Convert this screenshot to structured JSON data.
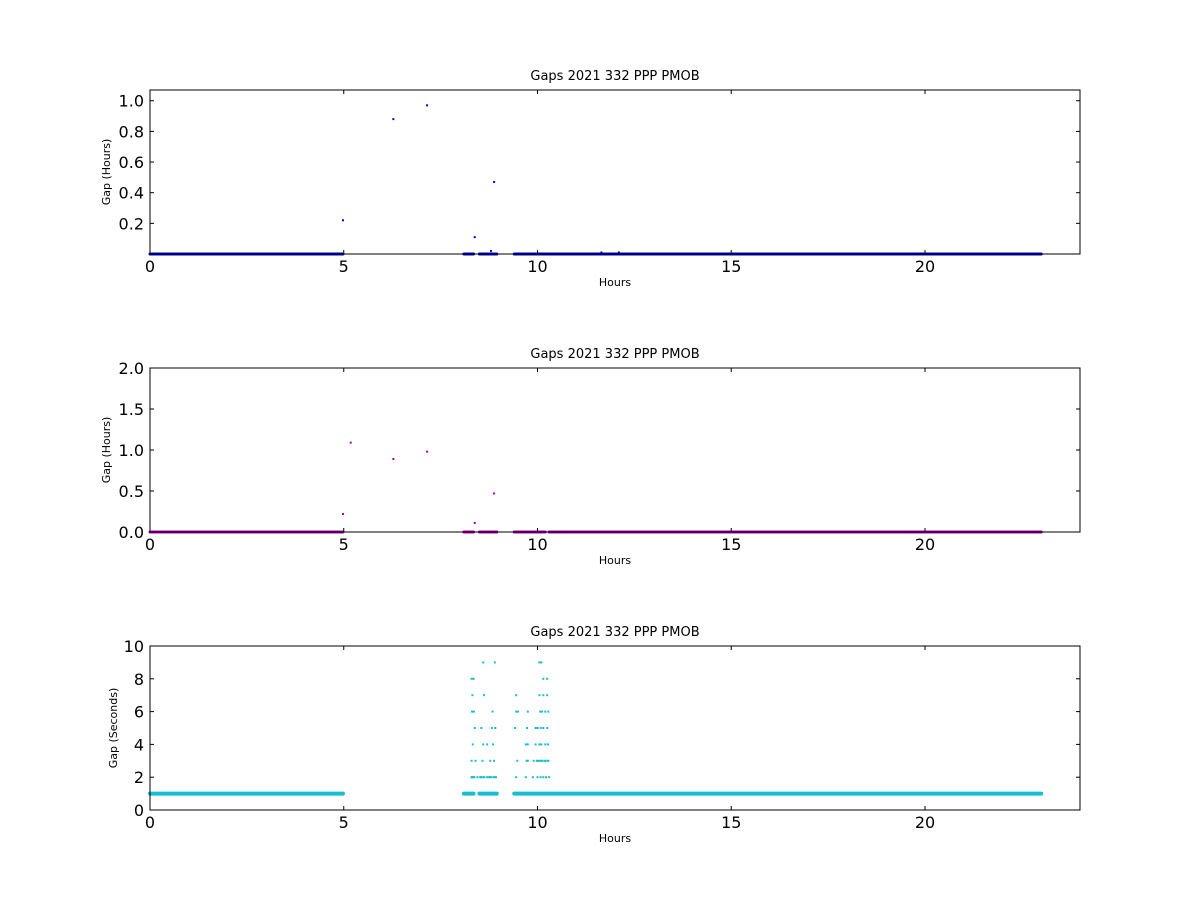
{
  "chart_data": [
    {
      "type": "scatter",
      "title": "Gaps 2021 332 PPP  PMOB",
      "xlabel": "Hours",
      "ylabel": "Gap (Hours)",
      "xlim": [
        0,
        24
      ],
      "ylim": [
        0,
        1.07
      ],
      "xticks": [
        0,
        5,
        10,
        15,
        20
      ],
      "yticks": [
        0.2,
        0.4,
        0.6,
        0.8,
        1.0
      ],
      "ytick_labels": [
        "0.2",
        "0.4",
        "0.6",
        "0.8",
        "1.0"
      ],
      "grid": false,
      "color": "#0000cc",
      "baseline_segments": [
        [
          0.0,
          4.98
        ],
        [
          8.1,
          8.35
        ],
        [
          8.5,
          8.95
        ],
        [
          9.4,
          23.0
        ]
      ],
      "baseline_value": 0.0003,
      "series": [
        {
          "x": [
            4.98,
            6.28,
            7.15,
            8.38,
            8.88,
            8.8,
            11.65,
            12.1
          ],
          "y": [
            0.22,
            0.88,
            0.97,
            0.11,
            0.47,
            0.02,
            0.01,
            0.01
          ]
        }
      ]
    },
    {
      "type": "scatter",
      "title": "Gaps 2021 332 PPP  PMOB",
      "xlabel": "Hours",
      "ylabel": "Gap (Hours)",
      "xlim": [
        0,
        24
      ],
      "ylim": [
        0,
        2.0
      ],
      "xticks": [
        0,
        5,
        10,
        15,
        20
      ],
      "yticks": [
        0.0,
        0.5,
        1.0,
        1.5,
        2.0
      ],
      "ytick_labels": [
        "0.0",
        "0.5",
        "1.0",
        "1.5",
        "2.0"
      ],
      "grid": false,
      "color": "#aa00aa",
      "baseline_segments": [
        [
          0.0,
          4.98
        ],
        [
          8.1,
          8.35
        ],
        [
          8.5,
          8.95
        ],
        [
          9.4,
          10.2
        ],
        [
          10.3,
          23.0
        ]
      ],
      "baseline_value": 0.0003,
      "series": [
        {
          "x": [
            4.98,
            5.18,
            6.28,
            7.15,
            8.38,
            8.88
          ],
          "y": [
            0.22,
            1.09,
            0.89,
            0.98,
            0.11,
            0.47
          ]
        }
      ]
    },
    {
      "type": "scatter",
      "title": "Gaps 2021 332 PPP  PMOB",
      "xlabel": "Hours",
      "ylabel": "Gap (Seconds)",
      "xlim": [
        0,
        24
      ],
      "ylim": [
        0,
        10
      ],
      "xticks": [
        0,
        5,
        10,
        15,
        20
      ],
      "yticks": [
        0,
        2,
        4,
        6,
        8,
        10
      ],
      "ytick_labels": [
        "0",
        "2",
        "4",
        "6",
        "8",
        "10"
      ],
      "grid": false,
      "color": "#17becf",
      "baseline_segments": [
        [
          0.0,
          4.98
        ],
        [
          8.1,
          8.35
        ],
        [
          8.5,
          8.95
        ],
        [
          9.4,
          23.0
        ]
      ],
      "baseline_value": 1.0,
      "series": [
        {
          "x": [
            8.3,
            8.35,
            8.6,
            8.9,
            8.32,
            8.36,
            8.62,
            8.84,
            8.31,
            8.38,
            8.55,
            8.82,
            8.91,
            8.33,
            8.6,
            8.7,
            8.85,
            8.3,
            8.4,
            8.58,
            8.78,
            8.88,
            8.32,
            8.52,
            8.61,
            8.75,
            8.8,
            8.9,
            8.3,
            8.37,
            8.45,
            8.55,
            8.63,
            8.7,
            8.78,
            8.86,
            8.93,
            8.55,
            8.3,
            8.35,
            9.45,
            9.5,
            9.75,
            10.05,
            10.1,
            10.15,
            10.25,
            9.45,
            10.05,
            10.15,
            10.25,
            9.42,
            9.73,
            9.95,
            10.07,
            10.12,
            10.2,
            10.28,
            9.75,
            10.0,
            10.08,
            10.15,
            10.25,
            9.7,
            9.95,
            10.05,
            10.1,
            10.2,
            10.27,
            9.72,
            9.9,
            10.0,
            10.1,
            10.18,
            10.26,
            9.48,
            9.75,
            9.98,
            10.05,
            10.12,
            10.2,
            10.28,
            9.45,
            9.7,
            9.88,
            10.0,
            10.08,
            10.15,
            10.22,
            10.3
          ],
          "y": [
            8,
            8,
            9,
            9,
            7,
            6,
            7,
            6,
            6,
            5,
            5,
            5,
            5,
            4,
            4,
            4,
            4,
            3,
            3,
            3,
            3,
            3,
            2,
            2,
            2,
            2,
            2,
            2,
            2,
            2,
            2,
            2,
            2,
            2,
            2,
            2,
            2,
            2,
            2,
            2,
            7,
            6,
            6,
            9,
            9,
            8,
            8,
            6,
            7,
            7,
            7,
            5,
            5,
            5,
            6,
            6,
            6,
            6,
            4,
            5,
            5,
            5,
            5,
            4,
            4,
            4,
            4,
            4,
            4,
            3,
            3,
            3,
            3,
            3,
            3,
            3,
            3,
            3,
            3,
            3,
            3,
            3,
            2,
            2,
            2,
            2,
            2,
            2,
            2,
            2
          ]
        }
      ]
    }
  ]
}
